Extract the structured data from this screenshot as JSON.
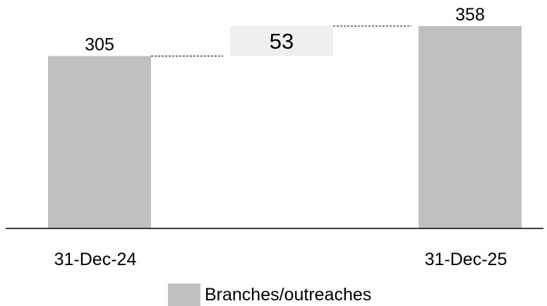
{
  "chart_data": {
    "type": "bar",
    "subtype": "waterfall",
    "categories": [
      "31-Dec-24",
      "",
      "31-Dec-25"
    ],
    "series": [
      {
        "name": "Branches/outreaches",
        "values": [
          305,
          53,
          358
        ],
        "kinds": [
          "total",
          "delta",
          "total"
        ]
      }
    ],
    "data_labels": [
      "305",
      "53",
      "358"
    ],
    "ylim": [
      0,
      380
    ],
    "grid": false,
    "connectors": "dashed",
    "legend": {
      "position": "bottom",
      "entries": [
        "Branches/outreaches"
      ]
    },
    "colors": {
      "total_bar": "#c0c0c0",
      "delta_bar": "#efefef",
      "axis": "#000000",
      "connector": "#000000",
      "text": "#000000"
    }
  }
}
